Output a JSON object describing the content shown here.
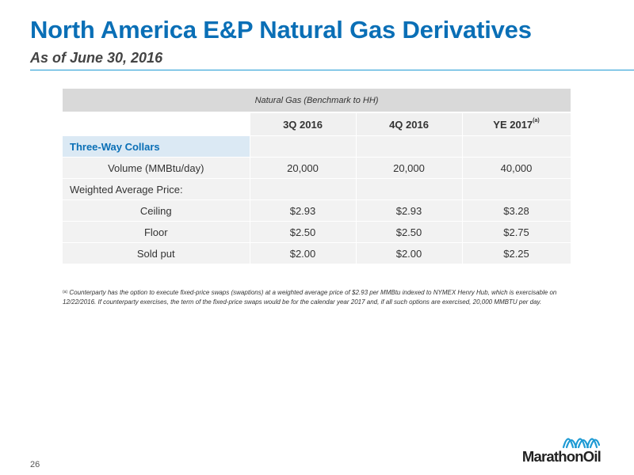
{
  "header": {
    "title": "North America E&P Natural Gas Derivatives",
    "subtitle": "As of June 30, 2016"
  },
  "table": {
    "benchmark": "Natural Gas (Benchmark to HH)",
    "columns": [
      "3Q 2016",
      "4Q 2016",
      "YE 2017"
    ],
    "column_footnote": "(a)",
    "section_title": "Three-Way Collars",
    "volume": {
      "label": "Volume (MMBtu/day)",
      "values": [
        "20,000",
        "20,000",
        "40,000"
      ]
    },
    "wap_label": "Weighted Average Price:",
    "ceiling": {
      "label": "Ceiling",
      "values": [
        "$2.93",
        "$2.93",
        "$3.28"
      ]
    },
    "floor": {
      "label": "Floor",
      "values": [
        "$2.50",
        "$2.50",
        "$2.75"
      ]
    },
    "sold_put": {
      "label": "Sold put",
      "values": [
        "$2.00",
        "$2.00",
        "$2.25"
      ]
    }
  },
  "footnote": {
    "marker": "(a)",
    "text": "Counterparty has the option to execute fixed-price swaps (swaptions) at a weighted average price of $2.93 per MMBtu indexed to NYMEX Henry Hub, which is exercisable on 12/22/2016. If counterparty exercises, the term of the fixed-price swaps would be for the calendar year 2017 and, if all such options are exercised, 20,000 MMBTU per day."
  },
  "page_number": "26",
  "logo": {
    "text": "MarathonOil",
    "icon": "marathon-waves-icon"
  },
  "colors": {
    "brand_blue": "#0a6fb6",
    "rule_blue": "#1f9bd4",
    "section_bg": "#dbe9f4",
    "cell_bg": "#f2f2f2",
    "bench_bg": "#d9d9d9"
  }
}
